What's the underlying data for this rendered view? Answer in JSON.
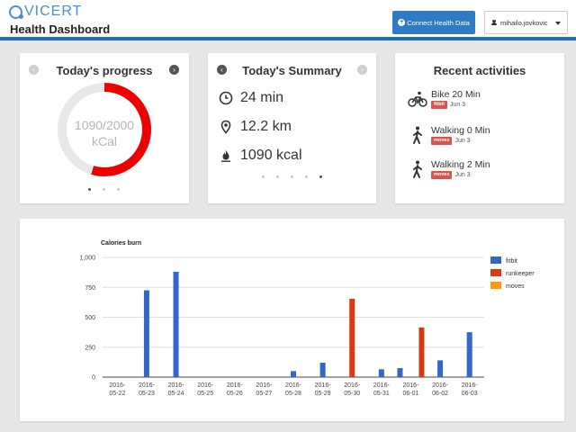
{
  "header": {
    "logo_text": "VICERT",
    "title": "Health Dashboard",
    "connect_label": "Connect Health Data",
    "user_label": "mihailo.jovkovic",
    "accent_color": "#1f6fb8"
  },
  "progress": {
    "title": "Today's progress",
    "current": 1090,
    "goal": 2000,
    "value_text": "1090/2000",
    "unit": "kCal",
    "ring_color": "#ee0000",
    "track_color": "#e8e8e8",
    "page_count": 3,
    "active_page": 0
  },
  "summary": {
    "title": "Today's Summary",
    "rows": [
      {
        "icon": "clock-icon",
        "value": "24 min"
      },
      {
        "icon": "location-pin-icon",
        "value": "12.2 km"
      },
      {
        "icon": "flame-icon",
        "value": "1090 kcal"
      }
    ],
    "page_count": 5,
    "active_page": 4
  },
  "activities": {
    "title": "Recent activities",
    "items": [
      {
        "icon": "bike-icon",
        "name": "Bike 20 Min",
        "source": "fitbit",
        "date": "Jun 3"
      },
      {
        "icon": "walking-icon",
        "name": "Walking 0 Min",
        "source": "moves",
        "date": "Jun 3"
      },
      {
        "icon": "walking-icon",
        "name": "Walking 2 Min",
        "source": "moves",
        "date": "Jun 3"
      }
    ]
  },
  "chart_data": {
    "type": "bar",
    "title": "Calories burn",
    "xlabel": "",
    "ylabel": "",
    "ylim": [
      0,
      1000
    ],
    "yticks": [
      0,
      250,
      500,
      750,
      1000
    ],
    "ytick_labels": [
      "0",
      "250",
      "500",
      "750",
      "1,000"
    ],
    "grid": true,
    "legend_position": "right",
    "categories": [
      "2016-05-22",
      "2016-05-23",
      "2016-05-24",
      "2016-05-25",
      "2016-05-26",
      "2016-05-27",
      "2016-05-28",
      "2016-05-29",
      "2016-05-30",
      "2016-05-31",
      "2016-06-01",
      "2016-06-02",
      "2016-06-03"
    ],
    "series": [
      {
        "name": "fitbit",
        "color": "#3366cc",
        "values": [
          0,
          725,
          880,
          0,
          0,
          0,
          50,
          120,
          0,
          65,
          75,
          140,
          375
        ]
      },
      {
        "name": "runkeeper",
        "color": "#dc3912",
        "values": [
          0,
          0,
          0,
          0,
          0,
          0,
          0,
          0,
          655,
          0,
          415,
          0,
          0
        ]
      },
      {
        "name": "moves",
        "color": "#ff9900",
        "values": [
          0,
          0,
          0,
          0,
          0,
          0,
          0,
          0,
          0,
          0,
          0,
          0,
          0
        ]
      }
    ]
  }
}
